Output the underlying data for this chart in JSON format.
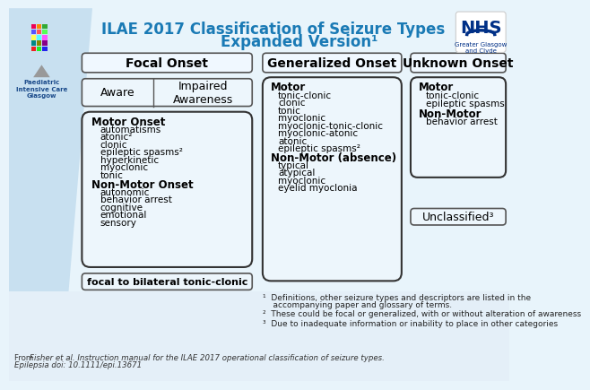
{
  "title_line1": "ILAE 2017 Classification of Seizure Types",
  "title_line2": "Expanded Version¹",
  "title_color": "#1a7ab5",
  "bg_color": "#deedf7",
  "main_bg": "#e8f4fb",
  "box_bg": "#eaf4fb",
  "box_bg_white": "#f5fafd",
  "col1_header": "Focal Onset",
  "col2_header": "Generalized Onset",
  "col3_header": "Unknown Onset",
  "aware_label": "Aware",
  "impaired_label": "Impaired\nAwareness",
  "focal_motor_header": "Motor Onset",
  "focal_motor_items": [
    "automatisms",
    "atonic²",
    "clonic",
    "epileptic spasms²",
    "hyperkinetic",
    "myoclonic",
    "tonic"
  ],
  "focal_nonmotor_header": "Non-Motor Onset",
  "focal_nonmotor_items": [
    "autonomic",
    "behavior arrest",
    "cognitive",
    "emotional",
    "sensory"
  ],
  "focal_bottom": "focal to bilateral tonic-clonic",
  "gen_motor_header": "Motor",
  "gen_motor_items": [
    "tonic-clonic",
    "clonic",
    "tonic",
    "myoclonic",
    "myoclonic-tonic-clonic",
    "myoclonic-atonic",
    "atonic",
    "epileptic spasms²"
  ],
  "gen_nonmotor_header": "Non-Motor (absence)",
  "gen_nonmotor_items": [
    "typical",
    "atypical",
    "myoclonic",
    "eyelid myoclonia"
  ],
  "unk_motor_header": "Motor",
  "unk_motor_items": [
    "tonic-clonic",
    "epileptic spasms"
  ],
  "unk_nonmotor_header": "Non-Motor",
  "unk_nonmotor_items": [
    "behavior arrest"
  ],
  "unclassified": "Unclassified³",
  "footnote1a": "¹  Definitions, other seizure types and descriptors are listed in the",
  "footnote1b": "    accompanying paper and glossary of terms.",
  "footnote2": "²  These could be focal or generalized, with or without alteration of awareness",
  "footnote3": "³  Due to inadequate information or inability to place in other categories",
  "footer_normal": "From ",
  "footer_italic": "Fisher et al. Instruction manual for the ILAE 2017 operational classification of seizure types.",
  "footer_italic2": "Epilepsia doi: 10.1111/epi.13671",
  "paediatric_text": "Paediatric\nIntensive Care\nGlasgow",
  "nhs_text": "NHS",
  "nhs_sub": "Greater Glasgow\nand Clyde",
  "diag_color": "#c8e0f0"
}
